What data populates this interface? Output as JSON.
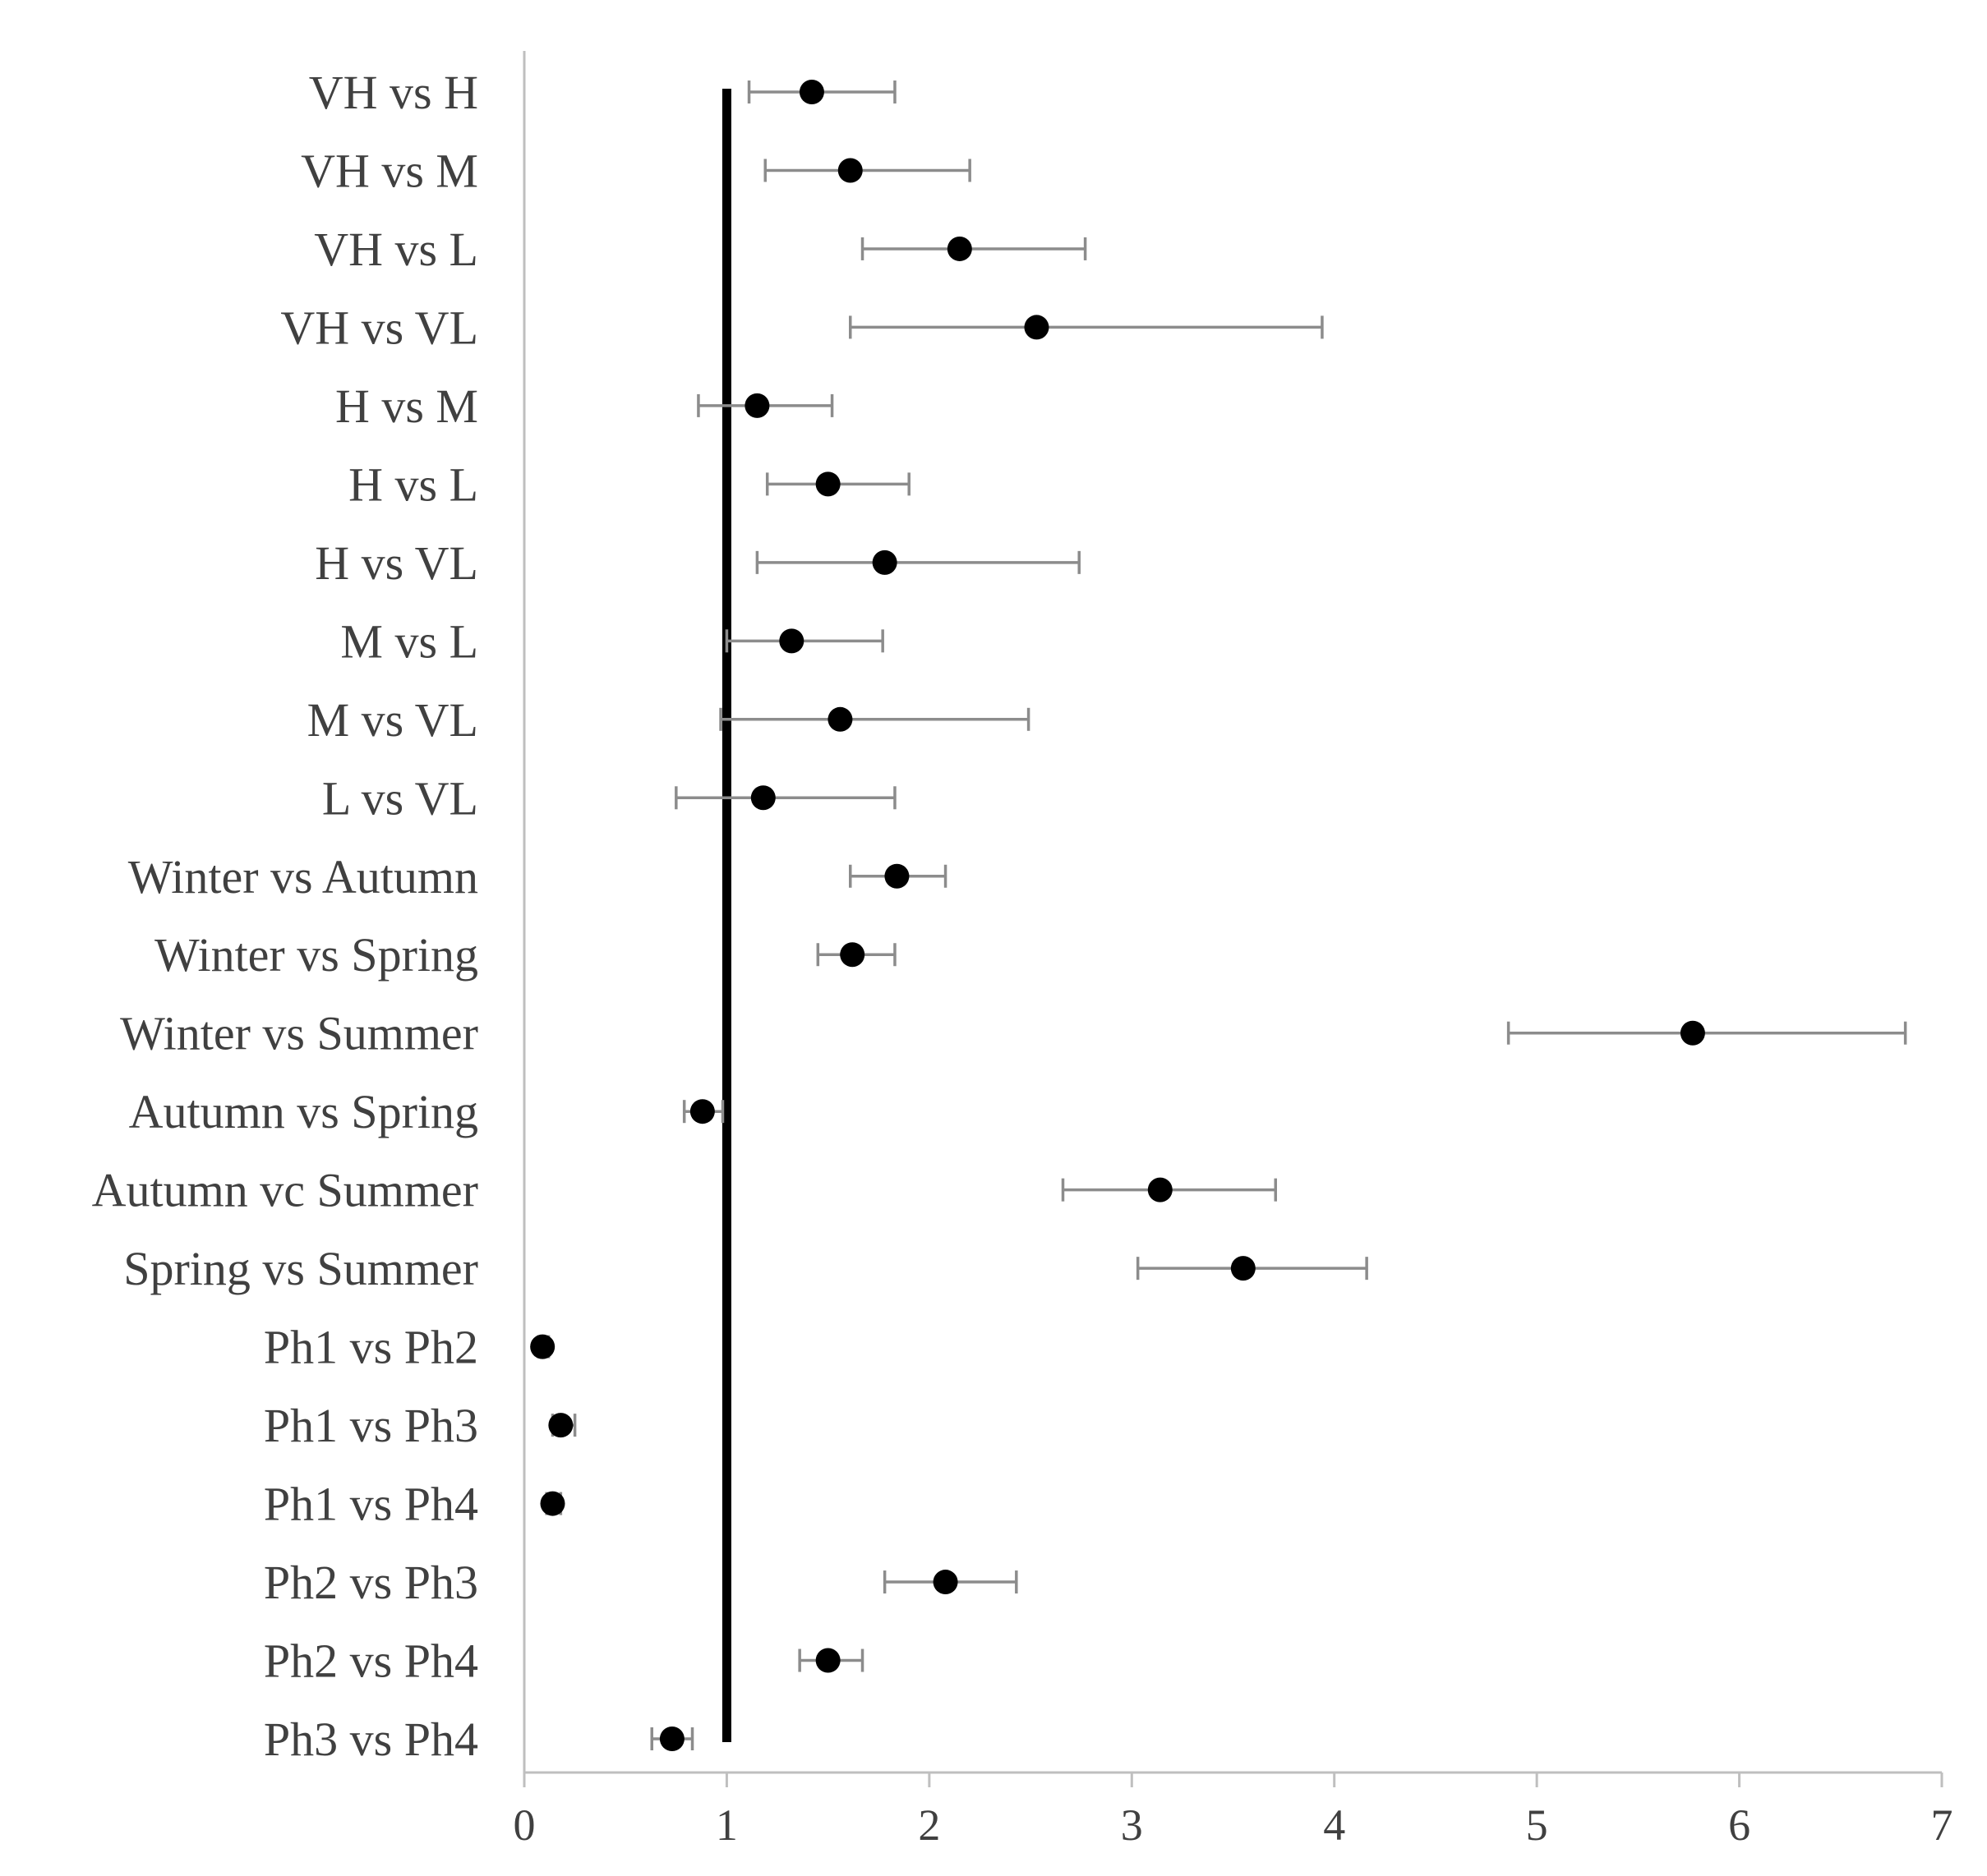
{
  "chart_data": {
    "type": "scatter",
    "subtype": "forest-plot",
    "title": "",
    "xlabel": "",
    "ylabel": "",
    "xlim": [
      0,
      7
    ],
    "x_ticks": [
      0,
      1,
      2,
      3,
      4,
      5,
      6,
      7
    ],
    "reference_line": 1,
    "grid": false,
    "rows": [
      {
        "label": "VH vs H",
        "value": 1.42,
        "lower": 1.11,
        "upper": 1.83
      },
      {
        "label": "VH vs M",
        "value": 1.61,
        "lower": 1.19,
        "upper": 2.2
      },
      {
        "label": "VH vs L",
        "value": 2.15,
        "lower": 1.67,
        "upper": 2.77
      },
      {
        "label": "VH vs VL",
        "value": 2.53,
        "lower": 1.61,
        "upper": 3.94
      },
      {
        "label": "H vs M",
        "value": 1.15,
        "lower": 0.86,
        "upper": 1.52
      },
      {
        "label": "H vs L",
        "value": 1.5,
        "lower": 1.2,
        "upper": 1.9
      },
      {
        "label": "H vs VL",
        "value": 1.78,
        "lower": 1.15,
        "upper": 2.74
      },
      {
        "label": "M vs L",
        "value": 1.32,
        "lower": 1.0,
        "upper": 1.77
      },
      {
        "label": "M vs VL",
        "value": 1.56,
        "lower": 0.97,
        "upper": 2.49
      },
      {
        "label": "L vs VL",
        "value": 1.18,
        "lower": 0.75,
        "upper": 1.83
      },
      {
        "label": "Winter vs Autumn",
        "value": 1.84,
        "lower": 1.61,
        "upper": 2.08
      },
      {
        "label": "Winter vs Spring",
        "value": 1.62,
        "lower": 1.45,
        "upper": 1.83
      },
      {
        "label": "Winter vs Summer",
        "value": 5.77,
        "lower": 4.86,
        "upper": 6.82
      },
      {
        "label": "Autumn vs Spring",
        "value": 0.88,
        "lower": 0.79,
        "upper": 0.98
      },
      {
        "label": "Autumn vc Summer",
        "value": 3.14,
        "lower": 2.66,
        "upper": 3.71
      },
      {
        "label": "Spring vs Summer",
        "value": 3.55,
        "lower": 3.03,
        "upper": 4.16
      },
      {
        "label": "Ph1 vs Ph2",
        "value": 0.09,
        "lower": 0.07,
        "upper": 0.12
      },
      {
        "label": "Ph1 vs Ph3",
        "value": 0.18,
        "lower": 0.14,
        "upper": 0.25
      },
      {
        "label": "Ph1 vs Ph4",
        "value": 0.14,
        "lower": 0.11,
        "upper": 0.18
      },
      {
        "label": "Ph2 vs Ph3",
        "value": 2.08,
        "lower": 1.78,
        "upper": 2.43
      },
      {
        "label": "Ph2 vs Ph4",
        "value": 1.5,
        "lower": 1.36,
        "upper": 1.67
      },
      {
        "label": "Ph3 vs Ph4",
        "value": 0.73,
        "lower": 0.63,
        "upper": 0.83
      }
    ]
  }
}
